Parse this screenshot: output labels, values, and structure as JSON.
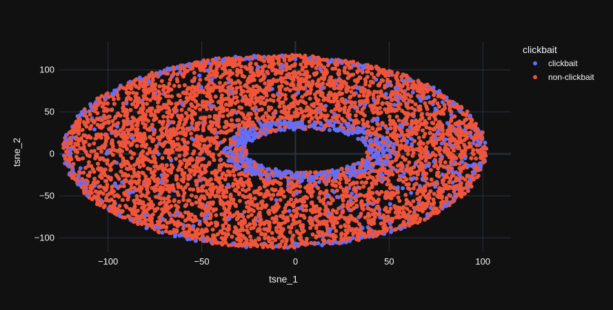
{
  "chart_data": {
    "type": "scatter",
    "title": "",
    "xlabel": "tsne_1",
    "ylabel": "tsne_2",
    "xlim": [
      -126,
      115
    ],
    "ylim": [
      -117,
      134
    ],
    "x_ticks": [
      -100,
      -50,
      0,
      50,
      100
    ],
    "y_ticks": [
      -100,
      -50,
      0,
      50,
      100
    ],
    "x_tick_labels": [
      "−100",
      "−50",
      "0",
      "50",
      "100"
    ],
    "y_tick_labels": [
      "−100",
      "−50",
      "0",
      "50",
      "100"
    ],
    "grid": true,
    "legend": {
      "title": "clickbait",
      "position": "top-right"
    },
    "series": [
      {
        "name": "clickbait",
        "color": "#636efa"
      },
      {
        "name": "non-clickbait",
        "color": "#ef553b"
      }
    ],
    "cloud": {
      "center": [
        -11,
        3
      ],
      "radius_x": 112,
      "radius_y": 114,
      "inner_hole": {
        "center": [
          6,
          4
        ],
        "radius_x": 38,
        "radius_y": 30
      }
    }
  },
  "colors": {
    "background": "#111111",
    "grid": "#283442",
    "text": "#f2f5fa"
  }
}
